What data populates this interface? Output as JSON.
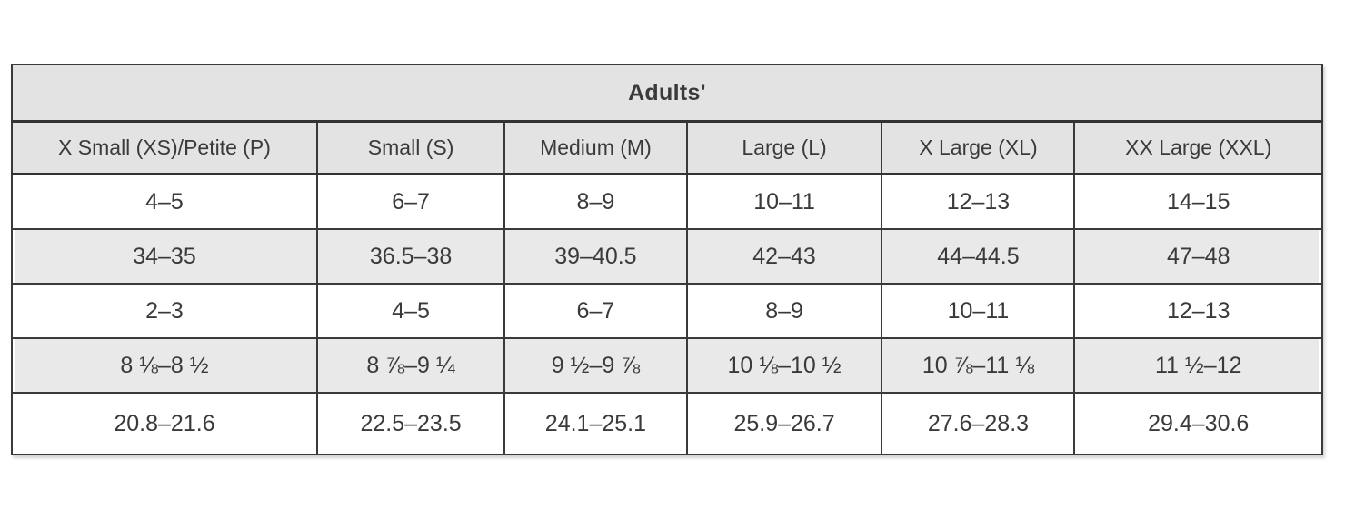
{
  "table": {
    "title": "Adults'",
    "columns": [
      "X Small (XS)/Petite (P)",
      "Small (S)",
      "Medium (M)",
      "Large (L)",
      "X Large (XL)",
      "XX Large (XXL)"
    ],
    "rows": [
      [
        "4–5",
        "6–7",
        "8–9",
        "10–11",
        "12–13",
        "14–15"
      ],
      [
        "34–35",
        "36.5–38",
        "39–40.5",
        "42–43",
        "44–44.5",
        "47–48"
      ],
      [
        "2–3",
        "4–5",
        "6–7",
        "8–9",
        "10–11",
        "12–13"
      ],
      [
        "8 ⅛–8 ½",
        "8 ⅞–9 ¼",
        "9 ½–9 ⅞",
        "10 ⅛–10 ½",
        "10 ⅞–11 ⅛",
        "11 ½–12"
      ],
      [
        "20.8–21.6",
        "22.5–23.5",
        "24.1–25.1",
        "25.9–26.7",
        "27.6–28.3",
        "29.4–30.6"
      ]
    ],
    "colors": {
      "border": "#3a3a3a",
      "header_bg": "#e2e3e2",
      "stripe_bg": "#e8e9e8",
      "text": "#3a3a3a",
      "page_bg": "#ffffff"
    }
  }
}
